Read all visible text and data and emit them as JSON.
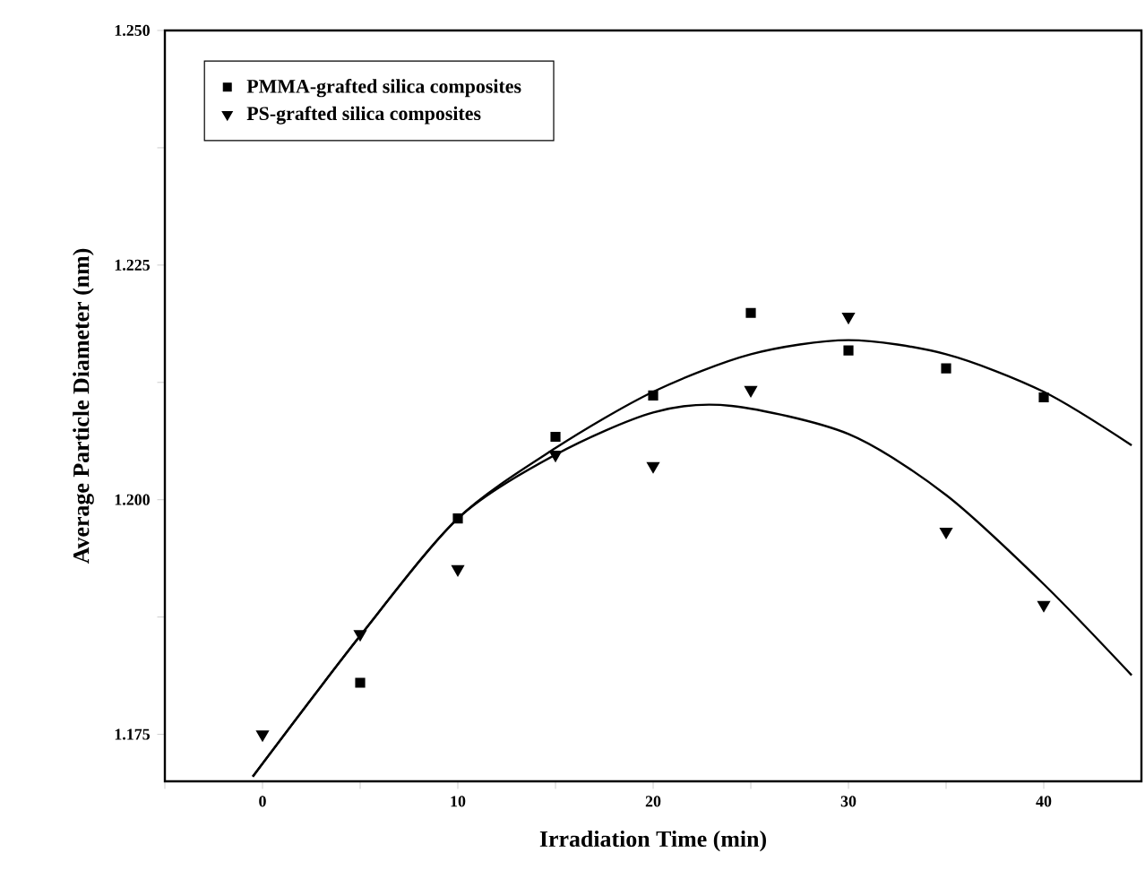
{
  "chart_data": {
    "type": "scatter",
    "xlabel": "Irradiation Time (min)",
    "ylabel": "Average Particle Diameter (nm)",
    "x": [
      0,
      5,
      10,
      15,
      20,
      25,
      30,
      35,
      40
    ],
    "series": [
      {
        "type": "line",
        "color": "#000000",
        "marker": "none",
        "x": [
          -0.5,
          5,
          10,
          15,
          20,
          25,
          30,
          35,
          40,
          44.5
        ],
        "values": [
          1.1705,
          1.1855,
          1.198,
          1.2055,
          1.2115,
          1.2155,
          1.217,
          1.2155,
          1.2115,
          1.2058
        ]
      },
      {
        "type": "line",
        "color": "#000000",
        "marker": "none",
        "x": [
          -0.5,
          5,
          10,
          15,
          20,
          24,
          30,
          35,
          40,
          44.5
        ],
        "values": [
          1.1705,
          1.1855,
          1.198,
          1.2048,
          1.2093,
          1.21,
          1.207,
          1.2005,
          1.191,
          1.1813
        ]
      },
      {
        "name": "PMMA-grafted silica composites",
        "color": "#000000",
        "marker": "square",
        "values": [
          null,
          1.1805,
          1.198,
          1.2067,
          1.2111,
          1.2199,
          1.2159,
          1.214,
          1.2109
        ]
      },
      {
        "name": "PS-grafted silica composites",
        "color": "#000000",
        "marker": "triangle",
        "values": [
          1.175,
          1.1857,
          1.1926,
          1.2048,
          1.2036,
          1.2117,
          1.2195,
          1.1966,
          1.1888
        ]
      }
    ],
    "xlim": [
      -5,
      45
    ],
    "ylim": [
      1.17,
      1.25
    ],
    "xticks": [
      {
        "value": -5,
        "label": null
      },
      0,
      {
        "value": 5,
        "label": null
      },
      10,
      {
        "value": 15,
        "label": null
      },
      20,
      {
        "value": 25,
        "label": null
      },
      30,
      {
        "value": 35,
        "label": null
      },
      40
    ],
    "yticks": [
      {
        "value": 1.175,
        "label": "1.175"
      },
      {
        "value": 1.1875,
        "label": null
      },
      {
        "value": 1.2,
        "label": "1.200"
      },
      {
        "value": 1.2125,
        "label": null
      },
      {
        "value": 1.225,
        "label": "1.225"
      },
      {
        "value": 1.2375,
        "label": null
      },
      {
        "value": 1.25,
        "label": "1.250"
      }
    ],
    "legend": "top left",
    "grid": false
  }
}
